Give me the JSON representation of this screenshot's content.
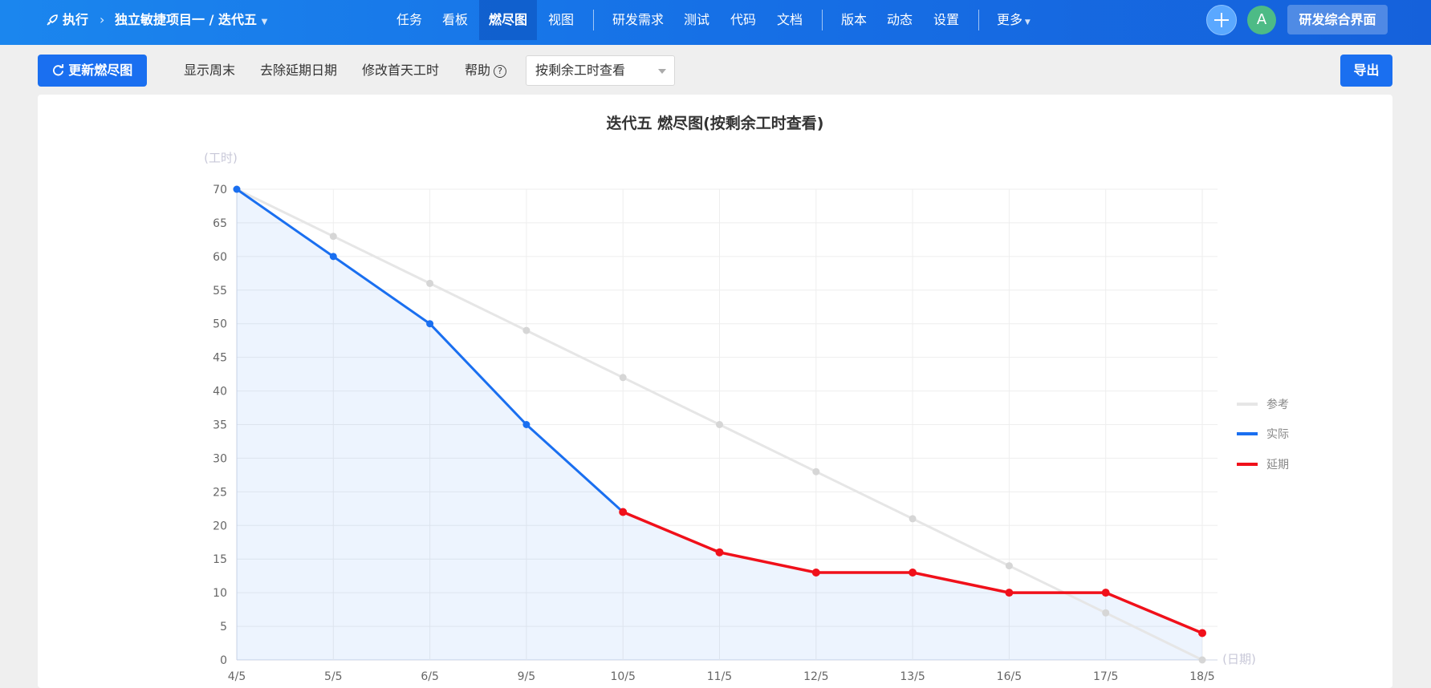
{
  "header": {
    "breadcrumb": {
      "section": "执行",
      "project": "独立敏捷项目一 / 迭代五"
    },
    "nav": [
      "任务",
      "看板",
      "燃尽图",
      "视图",
      "研发需求",
      "测试",
      "代码",
      "文档",
      "版本",
      "动态",
      "设置",
      "更多"
    ],
    "active_nav": "燃尽图",
    "avatar_letter": "A",
    "rd_button": "研发综合界面"
  },
  "toolbar": {
    "update_button": "更新燃尽图",
    "links": [
      "显示周末",
      "去除延期日期",
      "修改首天工时",
      "帮助"
    ],
    "view_select": "按剩余工时查看",
    "export_button": "导出"
  },
  "chart_data": {
    "type": "line",
    "title": "迭代五 燃尽图(按剩余工时查看)",
    "ylabel": "(工时)",
    "xlabel": "(日期)",
    "categories": [
      "4/5",
      "5/5",
      "6/5",
      "9/5",
      "10/5",
      "11/5",
      "12/5",
      "13/5",
      "16/5",
      "17/5",
      "18/5"
    ],
    "ylim": [
      0,
      70
    ],
    "yticks": [
      0,
      5,
      10,
      15,
      20,
      25,
      30,
      35,
      40,
      45,
      50,
      55,
      60,
      65,
      70
    ],
    "grid": true,
    "legend_position": "right",
    "series": [
      {
        "name": "参考",
        "color": "#e6e6e6",
        "values": [
          70,
          63,
          56,
          49,
          42,
          35,
          28,
          21,
          14,
          7,
          0
        ]
      },
      {
        "name": "实际",
        "color": "#1a6ff0",
        "values": [
          70,
          60,
          50,
          35,
          22,
          null,
          null,
          null,
          null,
          null,
          null
        ]
      },
      {
        "name": "延期",
        "color": "#f0101a",
        "values": [
          null,
          null,
          null,
          null,
          22,
          16,
          13,
          13,
          10,
          10,
          4
        ]
      }
    ]
  }
}
